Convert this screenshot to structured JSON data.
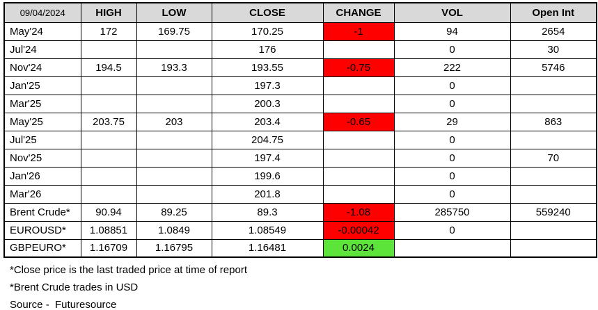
{
  "chart_data": {
    "type": "table",
    "date_header": "09/04/2024",
    "columns": [
      "HIGH",
      "LOW",
      "CLOSE",
      "CHANGE",
      "VOL",
      "Open Int"
    ],
    "rows": [
      {
        "label": "May'24",
        "high": "172",
        "low": "169.75",
        "close": "170.25",
        "change": "-1",
        "change_state": "negative",
        "vol": "94",
        "open_int": "2654"
      },
      {
        "label": "Jul'24",
        "high": "",
        "low": "",
        "close": "176",
        "change": "",
        "change_state": "",
        "vol": "0",
        "open_int": "30"
      },
      {
        "label": "Nov'24",
        "high": "194.5",
        "low": "193.3",
        "close": "193.55",
        "change": "-0.75",
        "change_state": "negative",
        "vol": "222",
        "open_int": "5746"
      },
      {
        "label": "Jan'25",
        "high": "",
        "low": "",
        "close": "197.3",
        "change": "",
        "change_state": "",
        "vol": "0",
        "open_int": ""
      },
      {
        "label": "Mar'25",
        "high": "",
        "low": "",
        "close": "200.3",
        "change": "",
        "change_state": "",
        "vol": "0",
        "open_int": ""
      },
      {
        "label": "May'25",
        "high": "203.75",
        "low": "203",
        "close": "203.4",
        "change": "-0.65",
        "change_state": "negative",
        "vol": "29",
        "open_int": "863"
      },
      {
        "label": "Jul'25",
        "high": "",
        "low": "",
        "close": "204.75",
        "change": "",
        "change_state": "",
        "vol": "0",
        "open_int": ""
      },
      {
        "label": "Nov'25",
        "high": "",
        "low": "",
        "close": "197.4",
        "change": "",
        "change_state": "",
        "vol": "0",
        "open_int": "70"
      },
      {
        "label": "Jan'26",
        "high": "",
        "low": "",
        "close": "199.6",
        "change": "",
        "change_state": "",
        "vol": "0",
        "open_int": ""
      },
      {
        "label": "Mar'26",
        "high": "",
        "low": "",
        "close": "201.8",
        "change": "",
        "change_state": "",
        "vol": "0",
        "open_int": ""
      },
      {
        "label": "Brent Crude*",
        "high": "90.94",
        "low": "89.25",
        "close": "89.3",
        "change": "-1.08",
        "change_state": "negative",
        "vol": "285750",
        "open_int": "559240"
      },
      {
        "label": "EUROUSD*",
        "high": "1.08851",
        "low": "1.0849",
        "close": "1.08549",
        "change": "-0.00042",
        "change_state": "negative",
        "vol": "0",
        "open_int": ""
      },
      {
        "label": "GBPEURO*",
        "high": "1.16709",
        "low": "1.16795",
        "close": "1.16481",
        "change": "0.0024",
        "change_state": "positive",
        "vol": "",
        "open_int": ""
      }
    ],
    "footnotes": [
      "*Close price is the last traded price at time of report",
      "*Brent Crude trades in USD",
      "Source -  Futuresource"
    ],
    "colors": {
      "negative_bg": "#FF0000",
      "positive_bg": "#5CE43A",
      "header_bg": "#D9D9D9",
      "border": "#000000"
    }
  }
}
